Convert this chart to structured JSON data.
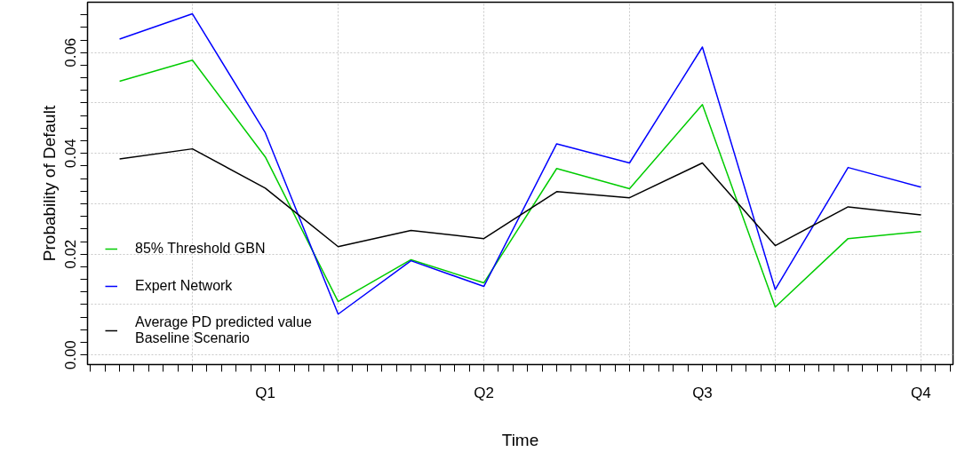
{
  "chart_data": {
    "type": "line",
    "xlabel": "Time",
    "ylabel": "Probability of Default",
    "categories": [
      null,
      null,
      "Q1",
      null,
      null,
      "Q2",
      null,
      null,
      "Q3",
      null,
      null,
      "Q4"
    ],
    "series": [
      {
        "name": "85% Threshold GBN",
        "color": "#00cc00",
        "values": [
          0.0543,
          0.0585,
          0.0393,
          0.0106,
          0.0189,
          0.0143,
          0.037,
          0.033,
          0.0497,
          0.0095,
          0.0231,
          0.0245
        ]
      },
      {
        "name": "Expert Network",
        "color": "#0000ff",
        "values": [
          0.0627,
          0.0677,
          0.0441,
          0.0081,
          0.0187,
          0.0136,
          0.0419,
          0.0381,
          0.0611,
          0.013,
          0.0372,
          0.0333
        ]
      },
      {
        "name": "Average PD predicted value\nBaseline Scenario",
        "color": "#000000",
        "values": [
          0.0389,
          0.0409,
          0.0331,
          0.0215,
          0.0247,
          0.0231,
          0.0324,
          0.0312,
          0.0381,
          0.0217,
          0.0294,
          0.0278
        ]
      }
    ],
    "ylim": [
      -0.0019,
      0.07
    ],
    "yticks": [
      {
        "value": 0,
        "label": "0.00"
      },
      {
        "value": 0.0025,
        "label": null
      },
      {
        "value": 0.005,
        "label": null
      },
      {
        "value": 0.0075,
        "label": null
      },
      {
        "value": 0.01,
        "label": null
      },
      {
        "value": 0.0125,
        "label": null
      },
      {
        "value": 0.015,
        "label": null
      },
      {
        "value": 0.0175,
        "label": null
      },
      {
        "value": 0.02,
        "label": "0.02"
      },
      {
        "value": 0.0225,
        "label": null
      },
      {
        "value": 0.025,
        "label": null
      },
      {
        "value": 0.0275,
        "label": null
      },
      {
        "value": 0.03,
        "label": null
      },
      {
        "value": 0.0325,
        "label": null
      },
      {
        "value": 0.035,
        "label": null
      },
      {
        "value": 0.0375,
        "label": null
      },
      {
        "value": 0.04,
        "label": "0.04"
      },
      {
        "value": 0.0425,
        "label": null
      },
      {
        "value": 0.045,
        "label": null
      },
      {
        "value": 0.0475,
        "label": null
      },
      {
        "value": 0.05,
        "label": null
      },
      {
        "value": 0.0525,
        "label": null
      },
      {
        "value": 0.055,
        "label": null
      },
      {
        "value": 0.0575,
        "label": null
      },
      {
        "value": 0.06,
        "label": "0.06"
      },
      {
        "value": 0.0625,
        "label": null
      },
      {
        "value": 0.065,
        "label": null
      },
      {
        "value": 0.0675,
        "label": null
      }
    ],
    "grid": true,
    "legend": "bottom left",
    "line_style": "solid"
  }
}
